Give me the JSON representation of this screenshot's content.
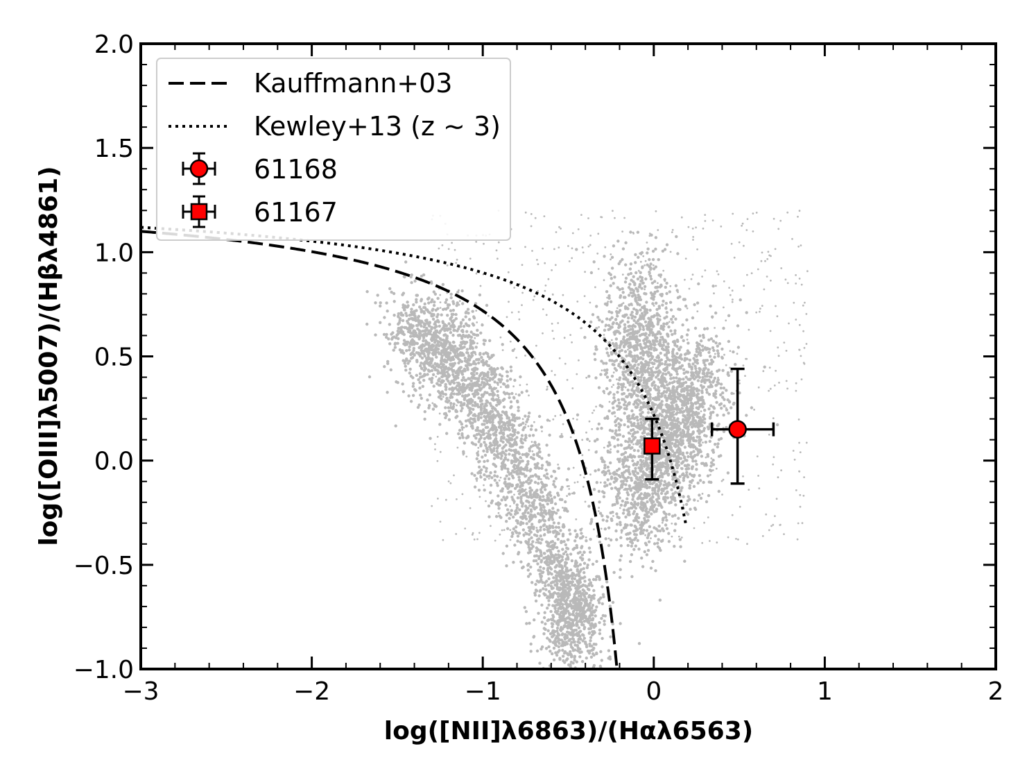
{
  "chart_data": {
    "type": "scatter",
    "xlabel": "log([NII]λ6863)/(Hαλ6563)",
    "ylabel": "log([OIII]λ5007)/(Hβλ4861)",
    "xlim": [
      -3,
      2
    ],
    "ylim": [
      -1.0,
      2.0
    ],
    "x_ticks": [
      "−3",
      "−2",
      "−1",
      "0",
      "1",
      "2"
    ],
    "y_ticks": [
      "−1.0",
      "−0.5",
      "0.0",
      "0.5",
      "1.0",
      "1.5",
      "2.0"
    ],
    "grid": false,
    "legend_position": "top-left",
    "background_colors": {
      "points": "#808080"
    },
    "curves": [
      {
        "name": "Kauffmann+03",
        "style": "dashed",
        "color": "#000000",
        "formula": "y = 0.61/(x - 0.05) + 1.3"
      },
      {
        "name": "Kewley+13 (z ∼ 3)",
        "style": "dotted",
        "color": "#000000",
        "formula": "y = 0.61/(x - 0.02 - 0.1833*z) + 1.2 + 0.03*z, z = 3"
      }
    ],
    "series": [
      {
        "name": "61168",
        "marker": "circle",
        "color": "#ff0000",
        "x": 0.49,
        "y": 0.15,
        "xerr": [
          0.15,
          0.21
        ],
        "yerr": [
          0.26,
          0.29
        ]
      },
      {
        "name": "61167",
        "marker": "square",
        "color": "#ff0000",
        "x": -0.01,
        "y": 0.07,
        "xerr": [
          0.0,
          0.0
        ],
        "yerr": [
          0.16,
          0.13
        ]
      }
    ]
  }
}
